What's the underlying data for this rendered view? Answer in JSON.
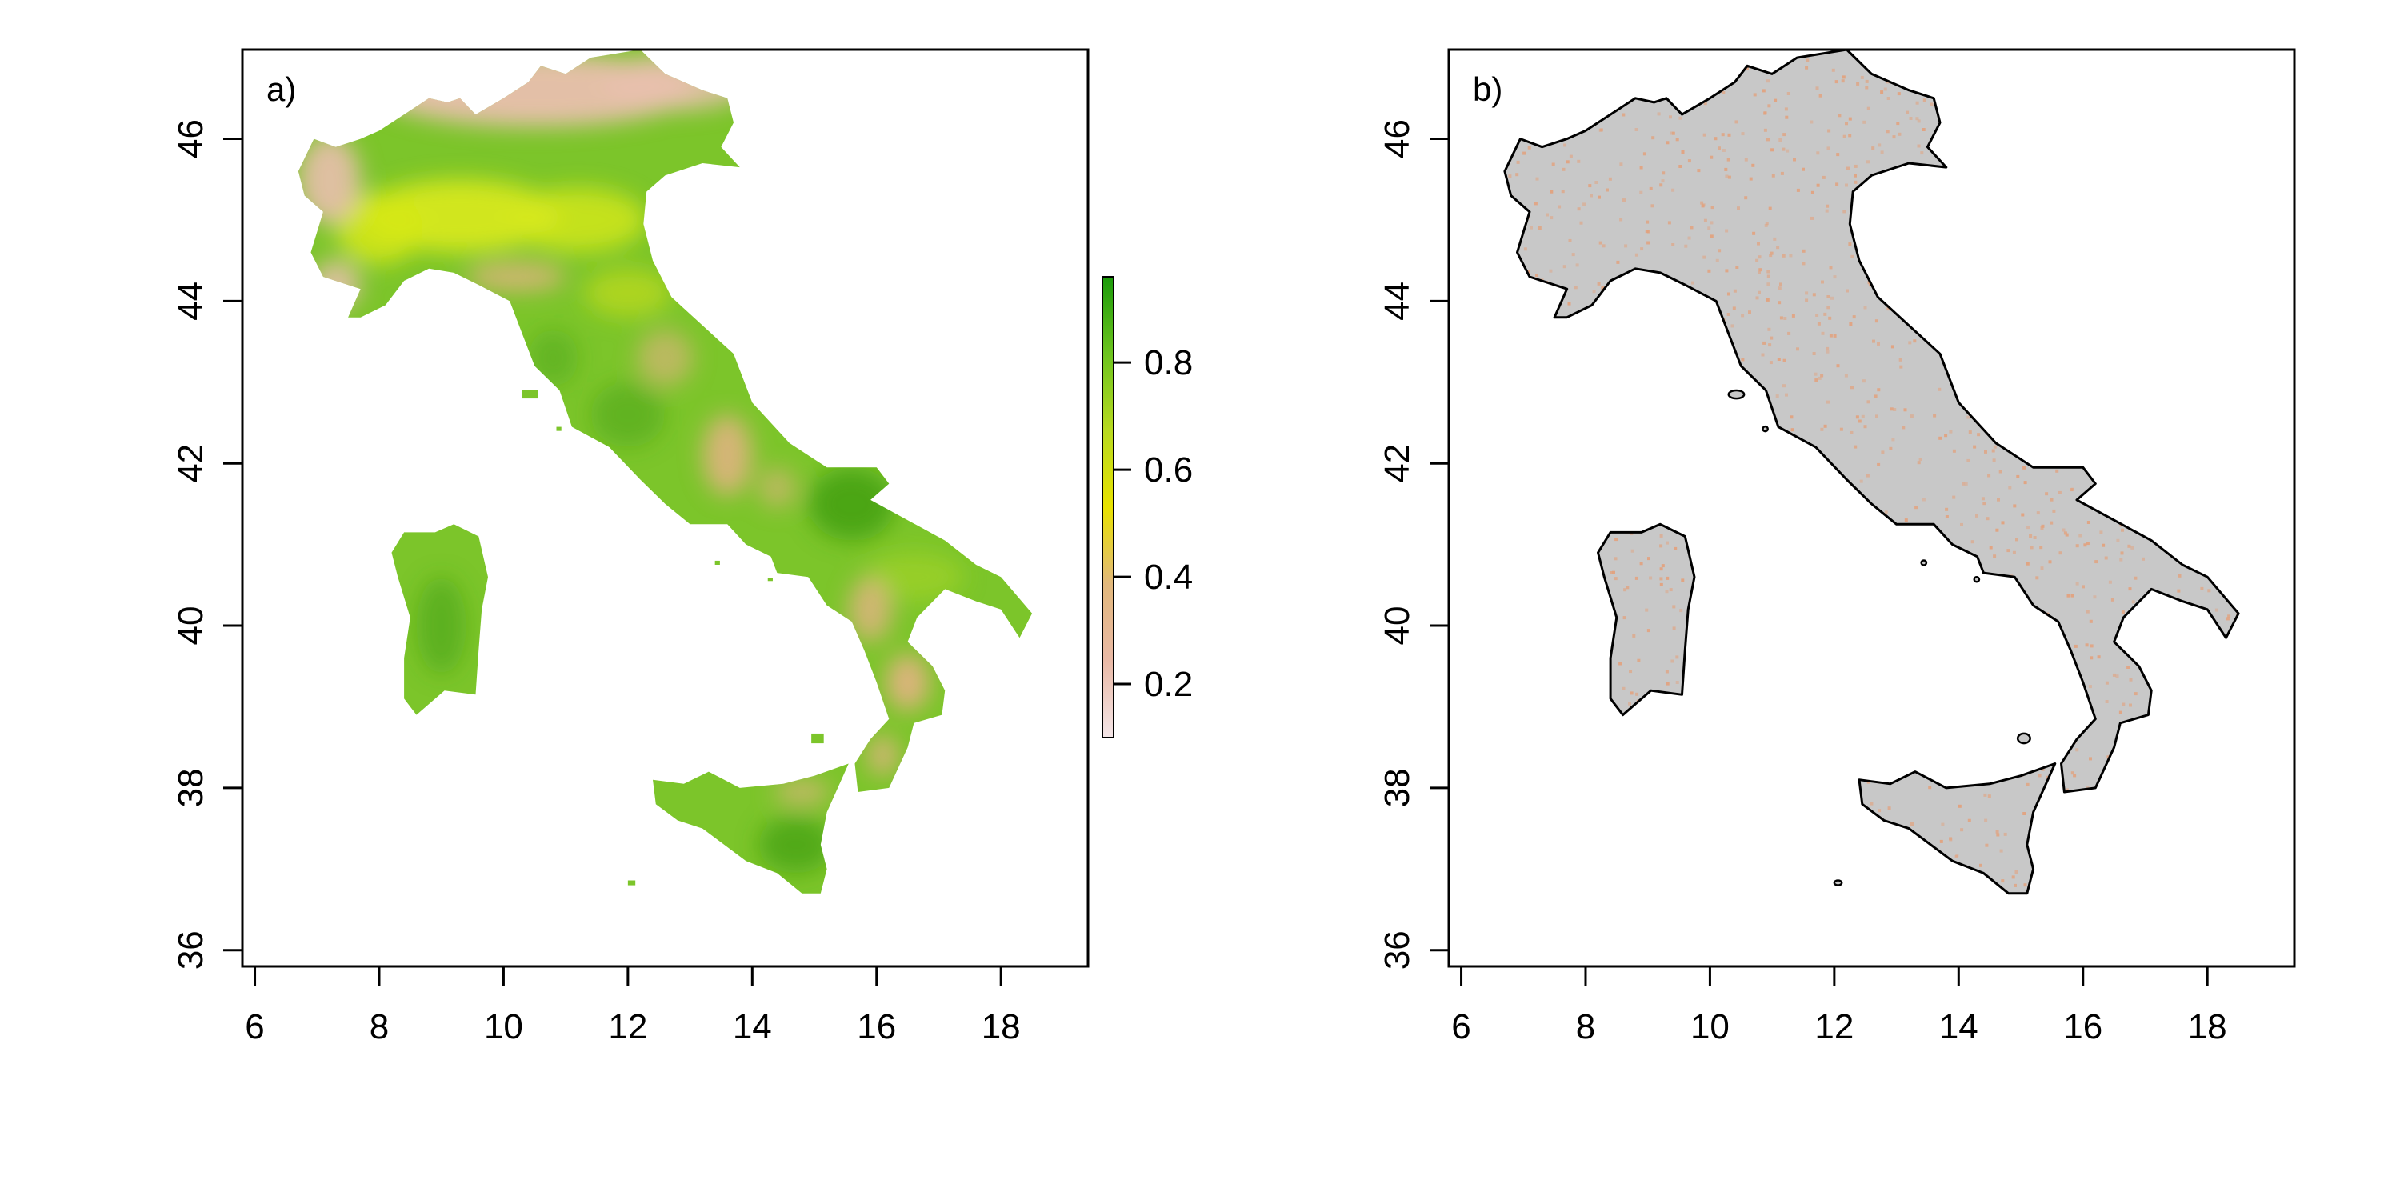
{
  "figure": {
    "panels": [
      {
        "id": "a",
        "label": "a)",
        "type": "raster",
        "xlim": [
          5.8,
          19.4
        ],
        "ylim": [
          35.8,
          47.1
        ],
        "x_ticks": [
          6,
          8,
          10,
          12,
          14,
          16,
          18
        ],
        "x_tick_labels": [
          "6",
          "8",
          "10",
          "12",
          "14",
          "16",
          "18"
        ],
        "y_ticks": [
          36,
          38,
          40,
          42,
          44,
          46
        ],
        "y_tick_labels": [
          "36",
          "38",
          "40",
          "42",
          "44",
          "46"
        ]
      },
      {
        "id": "b",
        "label": "b)",
        "type": "outline",
        "xlim": [
          5.8,
          19.4
        ],
        "ylim": [
          35.8,
          47.1
        ],
        "x_ticks": [
          6,
          8,
          10,
          12,
          14,
          16,
          18
        ],
        "x_tick_labels": [
          "6",
          "8",
          "10",
          "12",
          "14",
          "16",
          "18"
        ],
        "y_ticks": [
          36,
          38,
          40,
          42,
          44,
          46
        ],
        "y_tick_labels": [
          "36",
          "38",
          "40",
          "42",
          "44",
          "46"
        ]
      }
    ],
    "colorbar": {
      "range": [
        0.1,
        0.96
      ],
      "ticks": [
        0.2,
        0.4,
        0.6,
        0.8
      ],
      "tick_labels": [
        "0.2",
        "0.4",
        "0.6",
        "0.8"
      ],
      "gradient_colors": [
        "#f4e6e8",
        "#e9b9a6",
        "#e2b87c",
        "#e8e200",
        "#b8da20",
        "#6cc41e",
        "#1a9a0a"
      ]
    },
    "colors": {
      "land_gray": "#c8c8c8",
      "speckle": "#e2a27e",
      "alps_pink": "#e9bfae",
      "valley_yellow": "#d6e81a",
      "green_mid": "#7cc52a",
      "green_dark": "#3e9e14",
      "outline": "#000000"
    }
  },
  "geography": {
    "mainland": [
      [
        6.7,
        45.6
      ],
      [
        6.95,
        46.0
      ],
      [
        7.3,
        45.9
      ],
      [
        7.7,
        46.0
      ],
      [
        8.0,
        46.1
      ],
      [
        8.4,
        46.3
      ],
      [
        8.8,
        46.5
      ],
      [
        9.1,
        46.45
      ],
      [
        9.3,
        46.5
      ],
      [
        9.55,
        46.3
      ],
      [
        10.0,
        46.5
      ],
      [
        10.4,
        46.7
      ],
      [
        10.6,
        46.9
      ],
      [
        11.0,
        46.8
      ],
      [
        11.4,
        47.0
      ],
      [
        12.2,
        47.1
      ],
      [
        12.6,
        46.8
      ],
      [
        13.2,
        46.6
      ],
      [
        13.6,
        46.5
      ],
      [
        13.7,
        46.2
      ],
      [
        13.5,
        45.9
      ],
      [
        13.8,
        45.65
      ],
      [
        13.2,
        45.7
      ],
      [
        12.6,
        45.55
      ],
      [
        12.3,
        45.35
      ],
      [
        12.25,
        44.95
      ],
      [
        12.4,
        44.5
      ],
      [
        12.7,
        44.05
      ],
      [
        13.2,
        43.7
      ],
      [
        13.7,
        43.35
      ],
      [
        14.0,
        42.75
      ],
      [
        14.6,
        42.25
      ],
      [
        15.2,
        41.95
      ],
      [
        16.0,
        41.95
      ],
      [
        16.2,
        41.75
      ],
      [
        15.9,
        41.55
      ],
      [
        16.5,
        41.3
      ],
      [
        17.1,
        41.05
      ],
      [
        17.6,
        40.75
      ],
      [
        18.0,
        40.6
      ],
      [
        18.5,
        40.15
      ],
      [
        18.3,
        39.85
      ],
      [
        18.0,
        40.2
      ],
      [
        17.6,
        40.3
      ],
      [
        17.1,
        40.45
      ],
      [
        16.65,
        40.1
      ],
      [
        16.5,
        39.8
      ],
      [
        16.9,
        39.5
      ],
      [
        17.1,
        39.2
      ],
      [
        17.05,
        38.9
      ],
      [
        16.6,
        38.8
      ],
      [
        16.5,
        38.5
      ],
      [
        16.2,
        38.0
      ],
      [
        15.7,
        37.95
      ],
      [
        15.65,
        38.3
      ],
      [
        15.9,
        38.6
      ],
      [
        16.2,
        38.85
      ],
      [
        16.0,
        39.3
      ],
      [
        15.8,
        39.7
      ],
      [
        15.6,
        40.05
      ],
      [
        15.2,
        40.25
      ],
      [
        14.9,
        40.6
      ],
      [
        14.4,
        40.65
      ],
      [
        14.3,
        40.85
      ],
      [
        13.9,
        41.0
      ],
      [
        13.6,
        41.25
      ],
      [
        13.0,
        41.25
      ],
      [
        12.6,
        41.5
      ],
      [
        12.2,
        41.8
      ],
      [
        11.7,
        42.2
      ],
      [
        11.1,
        42.45
      ],
      [
        10.9,
        42.9
      ],
      [
        10.5,
        43.2
      ],
      [
        10.3,
        43.6
      ],
      [
        10.1,
        44.0
      ],
      [
        9.6,
        44.2
      ],
      [
        9.2,
        44.35
      ],
      [
        8.8,
        44.4
      ],
      [
        8.4,
        44.25
      ],
      [
        8.1,
        43.95
      ],
      [
        7.7,
        43.8
      ],
      [
        7.5,
        43.8
      ],
      [
        7.7,
        44.15
      ],
      [
        7.1,
        44.3
      ],
      [
        6.9,
        44.6
      ],
      [
        7.1,
        45.1
      ],
      [
        6.8,
        45.3
      ]
    ],
    "sardinia": [
      [
        8.4,
        41.15
      ],
      [
        8.9,
        41.15
      ],
      [
        9.2,
        41.25
      ],
      [
        9.6,
        41.1
      ],
      [
        9.75,
        40.6
      ],
      [
        9.65,
        40.2
      ],
      [
        9.6,
        39.7
      ],
      [
        9.55,
        39.15
      ],
      [
        9.05,
        39.2
      ],
      [
        8.6,
        38.9
      ],
      [
        8.4,
        39.1
      ],
      [
        8.4,
        39.6
      ],
      [
        8.5,
        40.1
      ],
      [
        8.3,
        40.6
      ],
      [
        8.2,
        40.9
      ]
    ],
    "sicily": [
      [
        12.4,
        38.1
      ],
      [
        12.9,
        38.05
      ],
      [
        13.3,
        38.2
      ],
      [
        13.8,
        38.0
      ],
      [
        14.5,
        38.05
      ],
      [
        15.0,
        38.15
      ],
      [
        15.55,
        38.3
      ],
      [
        15.2,
        37.7
      ],
      [
        15.1,
        37.3
      ],
      [
        15.2,
        37.0
      ],
      [
        15.1,
        36.7
      ],
      [
        14.8,
        36.7
      ],
      [
        14.4,
        36.95
      ],
      [
        13.9,
        37.1
      ],
      [
        13.2,
        37.5
      ],
      [
        12.8,
        37.6
      ],
      [
        12.45,
        37.8
      ]
    ],
    "small_islands": [
      [
        10.3,
        42.8,
        0.25,
        0.1
      ],
      [
        10.85,
        42.4,
        0.08,
        0.05
      ],
      [
        13.4,
        40.75,
        0.08,
        0.05
      ],
      [
        14.25,
        40.55,
        0.08,
        0.04
      ],
      [
        14.95,
        38.55,
        0.2,
        0.12
      ],
      [
        12.0,
        36.8,
        0.12,
        0.06
      ]
    ]
  }
}
